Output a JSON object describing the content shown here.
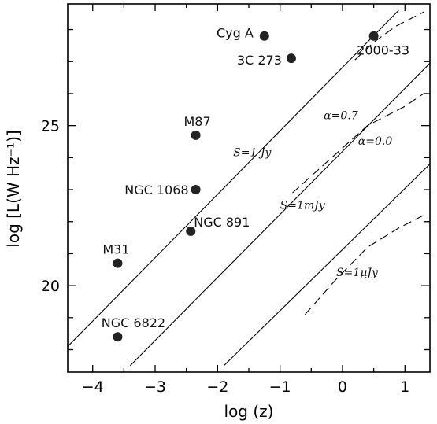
{
  "chart_data": {
    "type": "scatter",
    "title": "",
    "xlabel": "log (z)",
    "ylabel": "log [L(W Hz⁻¹)]",
    "xlim": [
      -4.4,
      1.4
    ],
    "ylim": [
      17.3,
      28.8
    ],
    "x_ticks": [
      -4,
      -3,
      -2,
      -1,
      0,
      1
    ],
    "x_tick_labels": [
      "−4",
      "−3",
      "−2",
      "−1",
      "0",
      "1"
    ],
    "y_ticks": [
      20,
      25
    ],
    "y_tick_labels": [
      "20",
      "25"
    ],
    "grid": false,
    "points": [
      {
        "label": "Cyg A",
        "x": -1.25,
        "y": 27.8
      },
      {
        "label": "3C 273",
        "x": -0.82,
        "y": 27.1
      },
      {
        "label": "2000-33",
        "x": 0.5,
        "y": 27.8
      },
      {
        "label": "M87",
        "x": -2.35,
        "y": 24.7
      },
      {
        "label": "NGC 1068",
        "x": -2.35,
        "y": 23.0
      },
      {
        "label": "NGC 891",
        "x": -2.43,
        "y": 21.7
      },
      {
        "label": "M31",
        "x": -3.6,
        "y": 20.7
      },
      {
        "label": "NGC 6822",
        "x": -3.6,
        "y": 18.4
      }
    ],
    "flux_limits": [
      {
        "label": "S=1 Jy",
        "x": [
          -4.4,
          0.9
        ],
        "y": [
          18.1,
          28.6
        ]
      },
      {
        "label": "S=1mJy",
        "x": [
          -3.4,
          1.4
        ],
        "y": [
          17.5,
          26.95
        ]
      },
      {
        "label": "S=1μJy",
        "x": [
          -1.9,
          1.4
        ],
        "y": [
          17.5,
          23.8
        ]
      }
    ],
    "dashed_curves": [
      {
        "x": [
          0.2,
          0.5,
          0.85,
          1.3
        ],
        "y": [
          27.05,
          27.6,
          28.1,
          28.55
        ]
      },
      {
        "x": [
          -0.8,
          -0.2,
          0.4,
          1.0,
          1.3
        ],
        "y": [
          22.9,
          23.95,
          25.0,
          25.6,
          26.0
        ]
      },
      {
        "x": [
          -0.6,
          -0.1,
          0.4,
          0.9,
          1.3
        ],
        "y": [
          19.1,
          20.2,
          21.2,
          21.8,
          22.2
        ]
      }
    ],
    "annotations": [
      {
        "text": "α=0.7",
        "x": -0.3,
        "y": 25.2
      },
      {
        "text": "α=0.0",
        "x": 0.25,
        "y": 24.4
      }
    ]
  }
}
